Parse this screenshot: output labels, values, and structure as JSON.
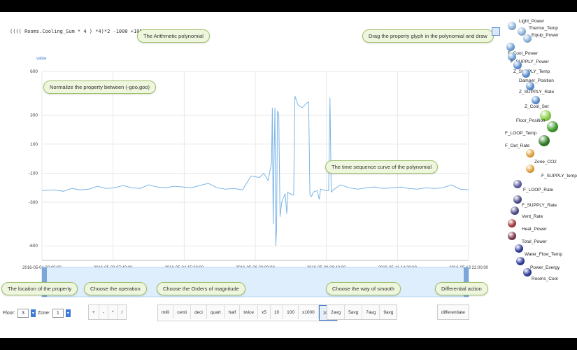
{
  "formula": "(((( Rooms.Cooling_Sum * 4 ) *4)*2 -1000 +100",
  "callouts": {
    "arithmetic": "The Arithmetic polynomial",
    "drag": "Drag the property glyph in the polynomial and draw",
    "normalize": "Normalize the property between (-goo,goo)",
    "time_sequence": "The time sequence curve of the polynomial",
    "location": "The location of the property",
    "operation": "Choose the operation",
    "magnitude": "Choose the Orders of magnitude",
    "smooth": "Choose the way of smooth",
    "differential": "Differential action"
  },
  "chart_data": {
    "type": "line",
    "ylabel": "value",
    "ylim": [
      -700,
      600
    ],
    "yticks": [
      "600",
      "300",
      "100",
      "-100",
      "-300",
      "-600"
    ],
    "xticks": [
      "2016-05-01 00:00:00",
      "2016-05-02 07:40:00",
      "2016-05-04 15:20:00",
      "2016-05-06 23:00:00",
      "2016-05-09 06:40:00",
      "2016-05-11 14:20:00",
      "2016-05-13 22:00:00"
    ],
    "series": [
      {
        "color": "#7cb5e6",
        "points": [
          [
            0,
            -220
          ],
          [
            3,
            -215
          ],
          [
            5,
            -225
          ],
          [
            7,
            -205
          ],
          [
            9,
            -215
          ],
          [
            11,
            -210
          ],
          [
            13,
            -190
          ],
          [
            15,
            -205
          ],
          [
            17,
            -200
          ],
          [
            19,
            -185
          ],
          [
            21,
            -200
          ],
          [
            23,
            -205
          ],
          [
            25,
            -180
          ],
          [
            27,
            -195
          ],
          [
            29,
            -200
          ],
          [
            31,
            -190
          ],
          [
            33,
            -195
          ],
          [
            35,
            -200
          ],
          [
            37,
            -185
          ],
          [
            39,
            -170
          ],
          [
            41,
            -200
          ],
          [
            43,
            -210
          ],
          [
            45,
            -205
          ],
          [
            47,
            -215
          ],
          [
            49,
            -120
          ],
          [
            51,
            -130
          ],
          [
            52,
            -100
          ],
          [
            53,
            -150
          ],
          [
            53.8,
            -30
          ],
          [
            54,
            350
          ],
          [
            54.2,
            -450
          ],
          [
            54.4,
            -20
          ],
          [
            54.6,
            350
          ],
          [
            54.8,
            -600
          ],
          [
            55,
            -480
          ],
          [
            55.2,
            330
          ],
          [
            55.5,
            300
          ],
          [
            55.8,
            -400
          ],
          [
            56.2,
            -300
          ],
          [
            57,
            -240
          ],
          [
            57.4,
            -380
          ],
          [
            57.6,
            -230
          ],
          [
            58,
            -240
          ],
          [
            59,
            -250
          ],
          [
            59.3,
            430
          ],
          [
            60,
            370
          ],
          [
            61,
            350
          ],
          [
            62,
            380
          ],
          [
            62.5,
            390
          ],
          [
            62.8,
            -250
          ],
          [
            63.2,
            -260
          ],
          [
            63.6,
            -230
          ],
          [
            64.5,
            -220
          ],
          [
            65,
            -280
          ],
          [
            65.3,
            -210
          ],
          [
            66.5,
            -220
          ],
          [
            67.2,
            -220
          ],
          [
            67.5,
            420
          ],
          [
            67.8,
            -230
          ],
          [
            68.5,
            -210
          ],
          [
            70,
            -180
          ],
          [
            72,
            -200
          ],
          [
            74,
            -210
          ],
          [
            76,
            -200
          ],
          [
            78,
            -195
          ],
          [
            80,
            -205
          ],
          [
            82,
            -200
          ],
          [
            84,
            -195
          ],
          [
            86,
            -205
          ],
          [
            88,
            -210
          ],
          [
            90,
            -200
          ],
          [
            92,
            -205
          ],
          [
            94,
            -200
          ],
          [
            96,
            -180
          ],
          [
            98,
            -210
          ],
          [
            100,
            -215
          ]
        ]
      }
    ]
  },
  "controls": {
    "floor_label": "Floor:",
    "floor_value": "3",
    "zone_label": "Zone:",
    "zone_value": "1",
    "operations": [
      "+",
      "-",
      "*",
      "/"
    ],
    "magnitudes": [
      "milli",
      "centi",
      "deci",
      "quart",
      "half",
      "twice",
      "x5",
      "10",
      "100",
      "x1000",
      "1000"
    ],
    "active_magnitude": 10,
    "smooth": [
      "2avg",
      "5avg",
      "7avg",
      "9avg"
    ],
    "differential": "differentiate"
  },
  "glyphs": [
    {
      "label": "Light_Power",
      "color": "#8fb4dd"
    },
    {
      "label": "Thermo_Temp",
      "color": "#8fb4dd"
    },
    {
      "label": "Equip_Power",
      "color": "#8fb4dd"
    },
    {
      "label": "F_Cool_Power",
      "color": "#6d9fd6"
    },
    {
      "label": "F_SUPPLY_Power",
      "color": "#6d9fd6"
    },
    {
      "label": "Z_SUPPLY_Temp",
      "color": "#5a8fd0"
    },
    {
      "label": "Damper_Position",
      "color": "#5a8fd0"
    },
    {
      "label": "Z_SUPPLY_Rate",
      "color": "#5a8fd0"
    },
    {
      "label": "Z_Cool_Set",
      "color": "#5a8fd0"
    },
    {
      "label": "Floor_Position",
      "color": "#8bcf46"
    },
    {
      "label": "F_LOOP_Temp",
      "color": "#3c9a2a"
    },
    {
      "label": "F_Out_Rate",
      "color": "#2f7d23"
    },
    {
      "label": "Zone_CO2",
      "color": "#e3a23c"
    },
    {
      "label": "F_SUPPLY_temp",
      "color": "#e3a23c"
    },
    {
      "label": "F_LOOP_Rate",
      "color": "#5c5ca0"
    },
    {
      "label": "F_SUPPLY_Rate",
      "color": "#4a4a8a"
    },
    {
      "label": "Vent_Rate",
      "color": "#4a4a8a"
    },
    {
      "label": "Heat_Power",
      "color": "#a13a3a"
    },
    {
      "label": "Total_Power",
      "color": "#7a3550"
    },
    {
      "label": "Water_Flow_Temp",
      "color": "#2d3b9a"
    },
    {
      "label": "Power_Exergy",
      "color": "#2d3b9a"
    },
    {
      "label": "Rooms_Cool",
      "color": "#2d3b9a"
    }
  ]
}
